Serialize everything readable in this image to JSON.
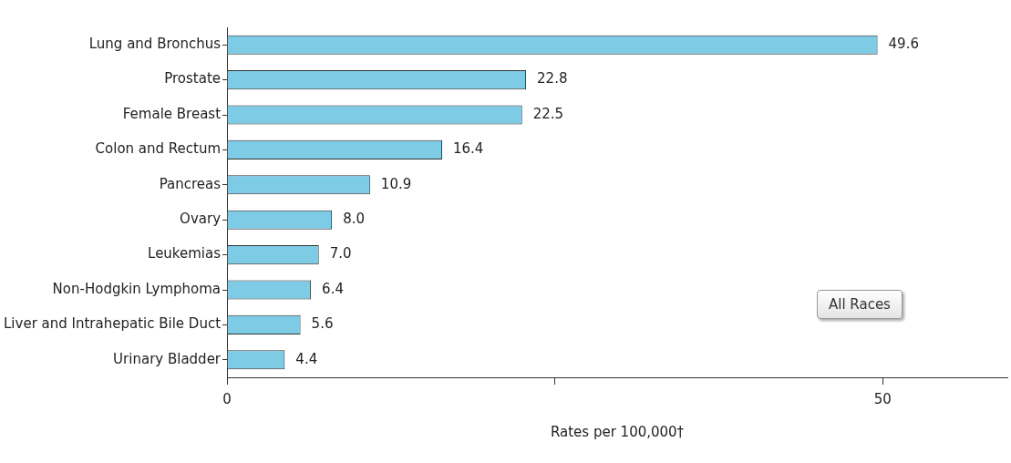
{
  "chart_data": {
    "type": "bar",
    "orientation": "horizontal",
    "xlabel": "Rates per 100,000†",
    "categories": [
      "Lung and Bronchus",
      "Prostate",
      "Female Breast",
      "Colon and Rectum",
      "Pancreas",
      "Ovary",
      "Leukemias",
      "Non-Hodgkin Lymphoma",
      "Liver and Intrahepatic Bile Duct",
      "Urinary Bladder"
    ],
    "values": [
      49.6,
      22.8,
      22.5,
      16.4,
      10.9,
      8.0,
      7.0,
      6.4,
      5.6,
      4.4
    ],
    "value_labels": [
      "49.6",
      "22.8",
      "22.5",
      "16.4",
      "10.9",
      "8.0",
      "7.0",
      "6.4",
      "5.6",
      "4.4"
    ],
    "color": "#7ecbe6",
    "xlim": [
      0,
      59.5
    ],
    "xticks": [
      0,
      {
        "value": 25,
        "label": null
      },
      50
    ],
    "grid": false,
    "legend": false,
    "annotations": [
      "All Races"
    ]
  }
}
